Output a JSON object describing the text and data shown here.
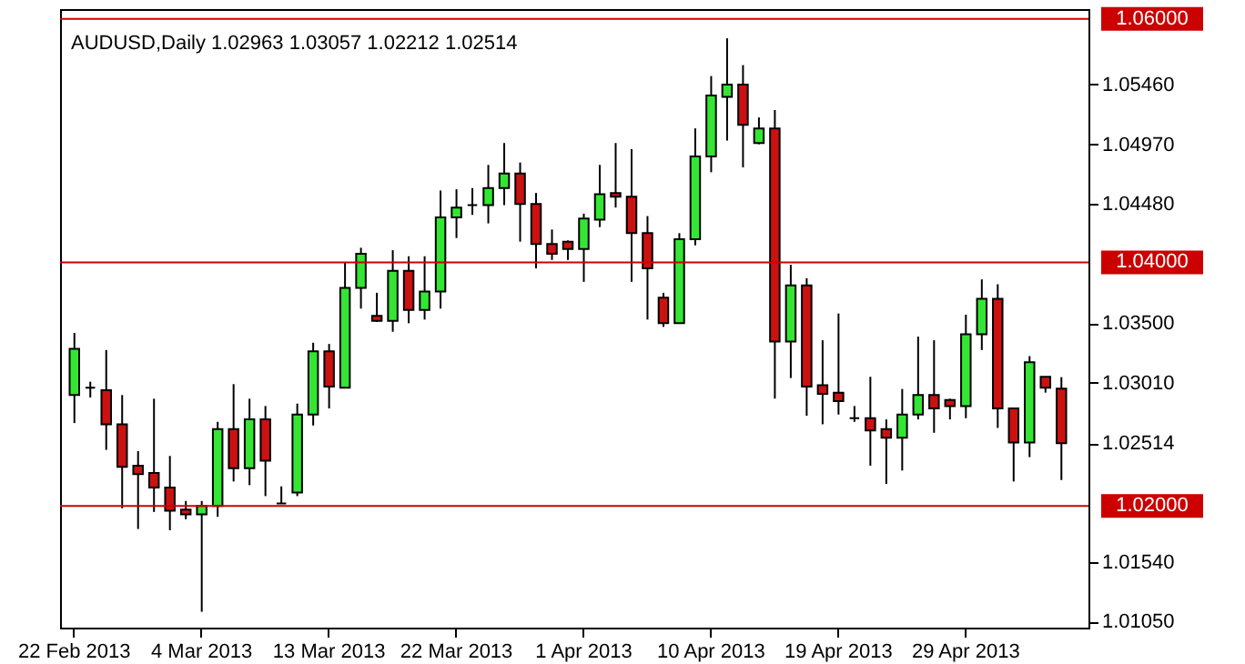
{
  "chart_data": {
    "type": "candlestick",
    "title": "AUDUSD,Daily  1.02963 1.03057 1.02212 1.02514",
    "categories": [
      "22 Feb 2013",
      null,
      null,
      null,
      null,
      null,
      null,
      null,
      "4 Mar 2013",
      null,
      null,
      null,
      null,
      null,
      null,
      null,
      "13 Mar 2013",
      null,
      null,
      null,
      null,
      null,
      null,
      null,
      "22 Mar 2013",
      null,
      null,
      null,
      null,
      null,
      null,
      null,
      "1 Apr 2013",
      null,
      null,
      null,
      null,
      null,
      null,
      null,
      "10 Apr 2013",
      null,
      null,
      null,
      null,
      null,
      null,
      null,
      "19 Apr 2013",
      null,
      null,
      null,
      null,
      null,
      null,
      null,
      "29 Apr 2013",
      null,
      null,
      null,
      null,
      null,
      null
    ],
    "ohlc": [
      [
        1.0291,
        1.0342,
        1.0268,
        1.0329
      ],
      [
        1.0297,
        1.0302,
        1.0289,
        1.0297
      ],
      [
        1.0295,
        1.0328,
        1.0246,
        1.0267
      ],
      [
        1.0267,
        1.0291,
        1.0198,
        1.0232
      ],
      [
        1.0233,
        1.0245,
        1.0181,
        1.0226
      ],
      [
        1.0227,
        1.0288,
        1.0195,
        1.0215
      ],
      [
        1.0215,
        1.0241,
        1.018,
        1.0196
      ],
      [
        1.0197,
        1.0204,
        1.0189,
        1.0193
      ],
      [
        1.0193,
        1.0204,
        1.0113,
        1.02
      ],
      [
        1.02,
        1.0269,
        1.0191,
        1.0263
      ],
      [
        1.0263,
        1.03,
        1.022,
        1.0231
      ],
      [
        1.0231,
        1.0288,
        1.0217,
        1.0271
      ],
      [
        1.0271,
        1.0282,
        1.0208,
        1.0237
      ],
      [
        1.0202,
        1.0216,
        1.0202,
        1.0202
      ],
      [
        1.0211,
        1.0284,
        1.0208,
        1.0275
      ],
      [
        1.0275,
        1.0334,
        1.0266,
        1.0327
      ],
      [
        1.0327,
        1.0333,
        1.028,
        1.0298
      ],
      [
        1.0297,
        1.04,
        1.0297,
        1.0379
      ],
      [
        1.0379,
        1.0412,
        1.0362,
        1.0407
      ],
      [
        1.0356,
        1.0375,
        1.0351,
        1.0352
      ],
      [
        1.0352,
        1.041,
        1.0343,
        1.0393
      ],
      [
        1.0393,
        1.0405,
        1.035,
        1.0361
      ],
      [
        1.0361,
        1.0405,
        1.0353,
        1.0376
      ],
      [
        1.0376,
        1.0459,
        1.0362,
        1.0437
      ],
      [
        1.0437,
        1.046,
        1.042,
        1.0445
      ],
      [
        1.0447,
        1.0461,
        1.0439,
        1.0447
      ],
      [
        1.0447,
        1.048,
        1.0432,
        1.0461
      ],
      [
        1.0461,
        1.0498,
        1.0447,
        1.0473
      ],
      [
        1.0473,
        1.0482,
        1.0417,
        1.0448
      ],
      [
        1.0448,
        1.0457,
        1.0395,
        1.0415
      ],
      [
        1.0415,
        1.0427,
        1.0402,
        1.0407
      ],
      [
        1.0417,
        1.0418,
        1.0402,
        1.0411
      ],
      [
        1.0411,
        1.044,
        1.0384,
        1.0436
      ],
      [
        1.0435,
        1.048,
        1.0429,
        1.0456
      ],
      [
        1.0457,
        1.0498,
        1.0445,
        1.0454
      ],
      [
        1.0454,
        1.0493,
        1.0384,
        1.0424
      ],
      [
        1.0424,
        1.0438,
        1.0353,
        1.0395
      ],
      [
        1.0371,
        1.0375,
        1.0347,
        1.035
      ],
      [
        1.035,
        1.0424,
        1.035,
        1.0419
      ],
      [
        1.0419,
        1.051,
        1.0414,
        1.0487
      ],
      [
        1.0487,
        1.0553,
        1.0474,
        1.0537
      ],
      [
        1.0536,
        1.0584,
        1.05,
        1.0546
      ],
      [
        1.0546,
        1.0562,
        1.0478,
        1.0513
      ],
      [
        1.0498,
        1.0519,
        1.0497,
        1.051
      ],
      [
        1.051,
        1.0525,
        1.0288,
        1.0335
      ],
      [
        1.0335,
        1.0398,
        1.0305,
        1.0381
      ],
      [
        1.0381,
        1.0387,
        1.0274,
        1.0298
      ],
      [
        1.0299,
        1.0336,
        1.0267,
        1.0292
      ],
      [
        1.0293,
        1.0358,
        1.0275,
        1.0286
      ],
      [
        1.0272,
        1.0282,
        1.0269,
        1.0272
      ],
      [
        1.0272,
        1.0306,
        1.0233,
        1.0262
      ],
      [
        1.0263,
        1.0271,
        1.0218,
        1.0256
      ],
      [
        1.0256,
        1.0296,
        1.0229,
        1.0275
      ],
      [
        1.0275,
        1.0339,
        1.0271,
        1.0291
      ],
      [
        1.0291,
        1.0336,
        1.026,
        1.028
      ],
      [
        1.0287,
        1.0288,
        1.0271,
        1.0282
      ],
      [
        1.0282,
        1.0357,
        1.0272,
        1.0341
      ],
      [
        1.0341,
        1.0386,
        1.0328,
        1.037
      ],
      [
        1.037,
        1.0382,
        1.0264,
        1.028
      ],
      [
        1.028,
        1.028,
        1.022,
        1.0252
      ],
      [
        1.0252,
        1.0323,
        1.024,
        1.0318
      ],
      [
        1.0306,
        1.0306,
        1.0293,
        1.0297
      ],
      [
        1.02963,
        1.03057,
        1.02212,
        1.02514
      ]
    ],
    "colors": [
      "#33e633",
      "#000000",
      "#cc1111",
      "#cc1111",
      "#cc1111",
      "#cc1111",
      "#cc1111",
      "#cc1111",
      "#33e633",
      "#33e633",
      "#cc1111",
      "#33e633",
      "#cc1111",
      "#000000",
      "#33e633",
      "#33e633",
      "#cc1111",
      "#33e633",
      "#33e633",
      "#cc1111",
      "#33e633",
      "#cc1111",
      "#33e633",
      "#33e633",
      "#33e633",
      "#000000",
      "#33e633",
      "#33e633",
      "#cc1111",
      "#cc1111",
      "#cc1111",
      "#cc1111",
      "#33e633",
      "#33e633",
      "#cc1111",
      "#cc1111",
      "#cc1111",
      "#cc1111",
      "#33e633",
      "#33e633",
      "#33e633",
      "#33e633",
      "#cc1111",
      "#33e633",
      "#cc1111",
      "#33e633",
      "#cc1111",
      "#cc1111",
      "#cc1111",
      "#000000",
      "#cc1111",
      "#cc1111",
      "#33e633",
      "#33e633",
      "#cc1111",
      "#cc1111",
      "#33e633",
      "#33e633",
      "#cc1111",
      "#cc1111",
      "#33e633",
      "#cc1111",
      "#cc1111"
    ],
    "ylim": [
      1.01,
      1.0608
    ],
    "yticks": [
      {
        "value": 1.0546,
        "label": "1.05460"
      },
      {
        "value": 1.0497,
        "label": "1.04970"
      },
      {
        "value": 1.0448,
        "label": "1.04480"
      },
      {
        "value": 1.035,
        "label": "1.03500"
      },
      {
        "value": 1.0301,
        "label": "1.03010"
      },
      {
        "value": 1.02514,
        "label": "1.02514"
      },
      {
        "value": 1.0154,
        "label": "1.01540"
      },
      {
        "value": 1.0105,
        "label": "1.01050"
      }
    ],
    "ref_lines": [
      {
        "axis": "y",
        "value": 1.06,
        "label": "1.06000",
        "color": "#cc0000"
      },
      {
        "axis": "y",
        "value": 1.04,
        "label": "1.04000",
        "color": "#cc0000"
      },
      {
        "axis": "y",
        "value": 1.02,
        "label": "1.02000",
        "color": "#cc0000"
      }
    ],
    "grid": false
  }
}
